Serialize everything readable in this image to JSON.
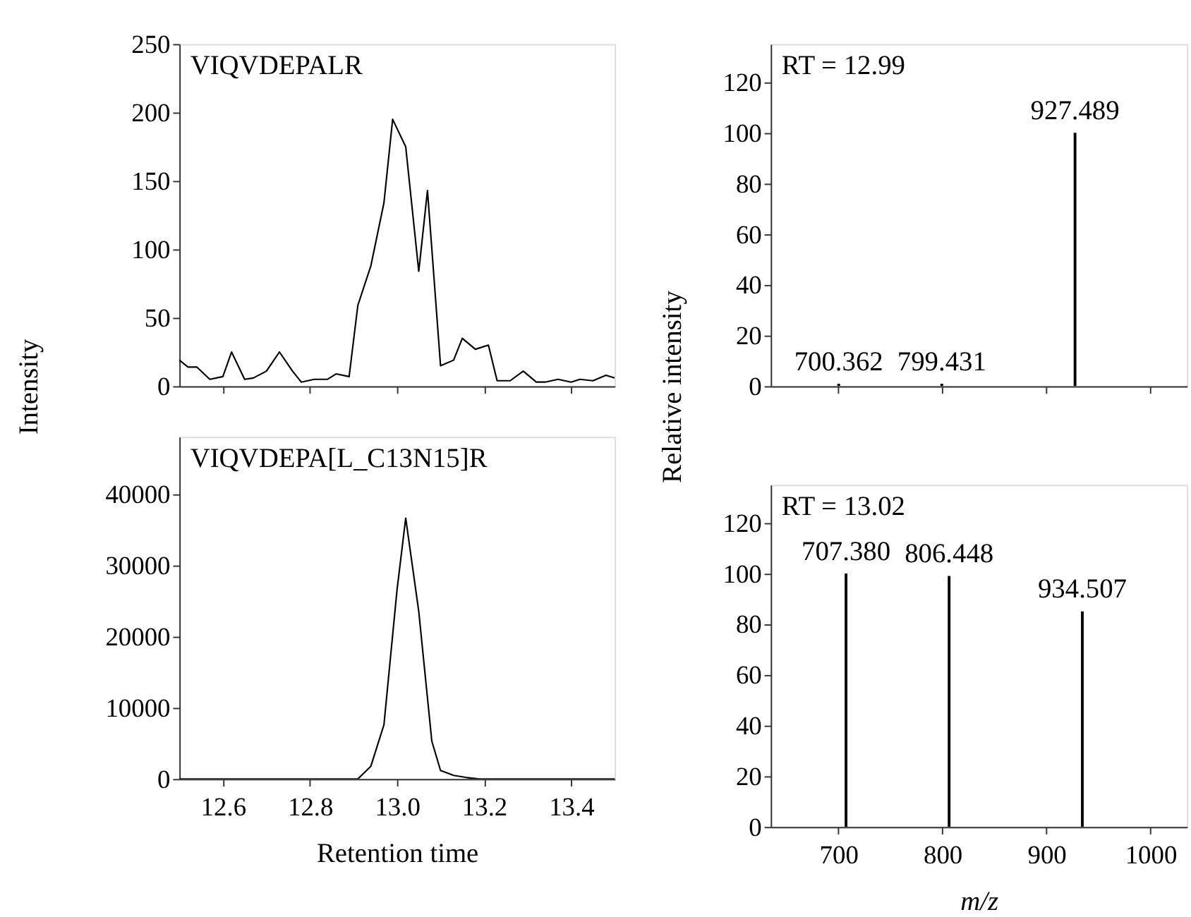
{
  "chart_data": [
    {
      "type": "line",
      "ylabel": "Intensity",
      "annotations": [
        "VIQVDEPALR"
      ],
      "x": [
        12.5,
        12.52,
        12.54,
        12.57,
        12.6,
        12.62,
        12.65,
        12.67,
        12.7,
        12.73,
        12.76,
        12.78,
        12.81,
        12.84,
        12.86,
        12.89,
        12.91,
        12.94,
        12.97,
        12.99,
        13.02,
        13.05,
        13.07,
        13.1,
        13.13,
        13.15,
        13.18,
        13.21,
        13.23,
        13.26,
        13.29,
        13.32,
        13.34,
        13.37,
        13.4,
        13.42,
        13.45,
        13.48,
        13.5
      ],
      "series": [
        {
          "color": "#000000",
          "values": [
            19,
            14,
            14,
            5,
            7,
            25,
            5,
            6,
            11,
            25,
            11,
            3,
            5,
            5,
            9,
            7,
            59,
            88,
            134,
            195,
            175,
            84,
            143,
            15,
            19,
            35,
            27,
            30,
            4,
            4,
            11,
            3,
            3,
            5,
            3,
            5,
            4,
            8,
            6
          ]
        }
      ],
      "xlim": [
        12.5,
        13.5
      ],
      "xticks": [
        12.6,
        12.8,
        13,
        13.2,
        13.4
      ],
      "ylim": [
        0,
        250
      ],
      "yticks": [
        0,
        50,
        100,
        150,
        200,
        250
      ],
      "tick_labels": "y"
    },
    {
      "type": "bar",
      "ylabel": "Relative intensity",
      "annotations": [
        "RT = 12.99",
        {
          "text": "700.362",
          "x": 700.362,
          "y": 1
        },
        {
          "text": "799.431",
          "x": 799.431,
          "y": 1
        },
        {
          "text": "927.489",
          "x": 927.489,
          "y": 100
        }
      ],
      "x": [
        700.362,
        799.431,
        927.489
      ],
      "series": [
        {
          "color": "#000000",
          "values": [
            1,
            1,
            100
          ]
        }
      ],
      "xlim": [
        635,
        1035
      ],
      "xticks": [
        700,
        800,
        900,
        1000
      ],
      "ylim": [
        0,
        135
      ],
      "yticks": [
        0,
        20,
        40,
        60,
        80,
        100,
        120
      ],
      "tick_labels": "y"
    },
    {
      "type": "line",
      "xlabel": "Retention time",
      "annotations": [
        "VIQVDEPA[L_C13N15]R"
      ],
      "x": [
        12.5,
        12.89,
        12.91,
        12.94,
        12.97,
        13.0,
        13.02,
        13.05,
        13.08,
        13.1,
        13.13,
        13.16,
        13.19,
        13.5
      ],
      "series": [
        {
          "color": "#000000",
          "values": [
            0,
            0,
            0,
            1800,
            7600,
            26500,
            36600,
            23500,
            5300,
            1200,
            500,
            200,
            0,
            0
          ]
        }
      ],
      "xlim": [
        12.5,
        13.5
      ],
      "xticks": [
        12.6,
        12.8,
        {
          "value": 13,
          "label": "13.0"
        },
        13.2,
        13.4
      ],
      "ylim": [
        0,
        48000
      ],
      "yticks": [
        0,
        10000,
        20000,
        30000,
        40000
      ]
    },
    {
      "type": "bar",
      "xlabel": "m/z",
      "annotations": [
        "RT = 13.02",
        {
          "text": "707.380",
          "x": 707.38,
          "y": 100
        },
        {
          "text": "806.448",
          "x": 806.448,
          "y": 99
        },
        {
          "text": "934.507",
          "x": 934.507,
          "y": 85
        }
      ],
      "x": [
        707.38,
        806.448,
        934.507
      ],
      "series": [
        {
          "color": "#000000",
          "values": [
            100,
            99,
            85
          ]
        }
      ],
      "xlim": [
        635,
        1035
      ],
      "xticks": [
        700,
        800,
        900,
        1000
      ],
      "ylim": [
        0,
        135
      ],
      "yticks": [
        0,
        20,
        40,
        60,
        80,
        100,
        120
      ]
    }
  ]
}
